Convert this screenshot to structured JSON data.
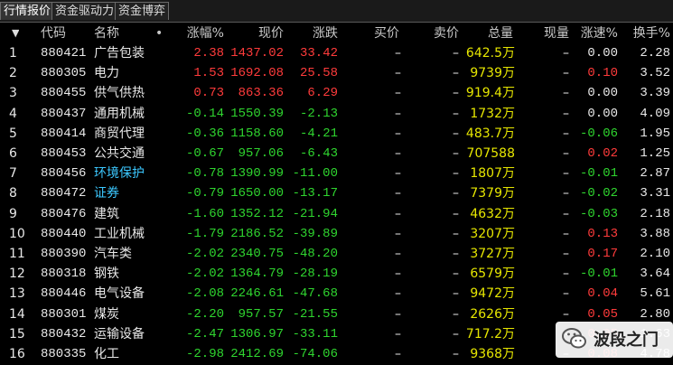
{
  "tabs": [
    {
      "label": "行情报价",
      "active": true
    },
    {
      "label": "资金驱动力",
      "active": false
    },
    {
      "label": "资金博弈",
      "active": false
    }
  ],
  "header": {
    "sort_icon": "▼",
    "code": "代码",
    "name": "名称",
    "name_marker": "•",
    "pct": "涨幅%",
    "price": "现价",
    "chg": "涨跌",
    "bid": "买价",
    "ask": "卖价",
    "vol": "总量",
    "cur": "现量",
    "speed": "涨速%",
    "turn": "换手%"
  },
  "rows": [
    {
      "idx": "1",
      "code": "880421",
      "name": "广告包装",
      "name_color": "white",
      "pct": "2.38",
      "price": "1437.02",
      "chg": "33.42",
      "bid": "–",
      "ask": "–",
      "vol": "642.5万",
      "cur": "–",
      "speed": "0.00",
      "turn": "2.28"
    },
    {
      "idx": "2",
      "code": "880305",
      "name": "电力",
      "name_color": "white",
      "pct": "1.53",
      "price": "1692.08",
      "chg": "25.58",
      "bid": "–",
      "ask": "–",
      "vol": "9739万",
      "cur": "–",
      "speed": "0.10",
      "turn": "3.52"
    },
    {
      "idx": "3",
      "code": "880455",
      "name": "供气供热",
      "name_color": "white",
      "pct": "0.73",
      "price": "863.36",
      "chg": "6.29",
      "bid": "–",
      "ask": "–",
      "vol": "919.4万",
      "cur": "–",
      "speed": "0.00",
      "turn": "3.39"
    },
    {
      "idx": "4",
      "code": "880437",
      "name": "通用机械",
      "name_color": "white",
      "pct": "-0.14",
      "price": "1550.39",
      "chg": "-2.13",
      "bid": "–",
      "ask": "–",
      "vol": "1732万",
      "cur": "–",
      "speed": "0.00",
      "turn": "4.09"
    },
    {
      "idx": "5",
      "code": "880414",
      "name": "商贸代理",
      "name_color": "white",
      "pct": "-0.36",
      "price": "1158.60",
      "chg": "-4.21",
      "bid": "–",
      "ask": "–",
      "vol": "483.7万",
      "cur": "–",
      "speed": "-0.06",
      "turn": "1.95"
    },
    {
      "idx": "6",
      "code": "880453",
      "name": "公共交通",
      "name_color": "white",
      "pct": "-0.67",
      "price": "957.06",
      "chg": "-6.43",
      "bid": "–",
      "ask": "–",
      "vol": "707588",
      "cur": "–",
      "speed": "0.02",
      "turn": "1.25"
    },
    {
      "idx": "7",
      "code": "880456",
      "name": "环境保护",
      "name_color": "cyan",
      "pct": "-0.78",
      "price": "1390.99",
      "chg": "-11.00",
      "bid": "–",
      "ask": "–",
      "vol": "1807万",
      "cur": "–",
      "speed": "-0.01",
      "turn": "2.87"
    },
    {
      "idx": "8",
      "code": "880472",
      "name": "证券",
      "name_color": "cyan",
      "pct": "-0.79",
      "price": "1650.00",
      "chg": "-13.17",
      "bid": "–",
      "ask": "–",
      "vol": "7379万",
      "cur": "–",
      "speed": "-0.02",
      "turn": "3.31"
    },
    {
      "idx": "9",
      "code": "880476",
      "name": "建筑",
      "name_color": "white",
      "pct": "-1.60",
      "price": "1352.12",
      "chg": "-21.94",
      "bid": "–",
      "ask": "–",
      "vol": "4632万",
      "cur": "–",
      "speed": "-0.03",
      "turn": "2.18"
    },
    {
      "idx": "10",
      "code": "880440",
      "name": "工业机械",
      "name_color": "white",
      "pct": "-1.79",
      "price": "2186.52",
      "chg": "-39.89",
      "bid": "–",
      "ask": "–",
      "vol": "3207万",
      "cur": "–",
      "speed": "0.13",
      "turn": "3.88"
    },
    {
      "idx": "11",
      "code": "880390",
      "name": "汽车类",
      "name_color": "white",
      "pct": "-2.02",
      "price": "2340.75",
      "chg": "-48.20",
      "bid": "–",
      "ask": "–",
      "vol": "3727万",
      "cur": "–",
      "speed": "0.17",
      "turn": "2.10"
    },
    {
      "idx": "12",
      "code": "880318",
      "name": "钢铁",
      "name_color": "white",
      "pct": "-2.02",
      "price": "1364.79",
      "chg": "-28.19",
      "bid": "–",
      "ask": "–",
      "vol": "6579万",
      "cur": "–",
      "speed": "-0.01",
      "turn": "3.64"
    },
    {
      "idx": "13",
      "code": "880446",
      "name": "电气设备",
      "name_color": "white",
      "pct": "-2.08",
      "price": "2246.61",
      "chg": "-47.68",
      "bid": "–",
      "ask": "–",
      "vol": "9472万",
      "cur": "–",
      "speed": "0.04",
      "turn": "5.61"
    },
    {
      "idx": "14",
      "code": "880301",
      "name": "煤炭",
      "name_color": "white",
      "pct": "-2.20",
      "price": "957.57",
      "chg": "-21.55",
      "bid": "–",
      "ask": "–",
      "vol": "2626万",
      "cur": "–",
      "speed": "0.05",
      "turn": "2.80"
    },
    {
      "idx": "15",
      "code": "880432",
      "name": "运输设备",
      "name_color": "white",
      "pct": "-2.47",
      "price": "1306.97",
      "chg": "-33.11",
      "bid": "–",
      "ask": "–",
      "vol": "717.2万",
      "cur": "–",
      "speed": "0.05",
      "turn": "1.63"
    },
    {
      "idx": "16",
      "code": "880335",
      "name": "化工",
      "name_color": "white",
      "pct": "-2.98",
      "price": "2412.69",
      "chg": "-74.06",
      "bid": "–",
      "ask": "–",
      "vol": "9368万",
      "cur": "–",
      "speed": "0.08",
      "turn": "4.78"
    }
  ],
  "watermark": {
    "text": "波段之门",
    "icon": "wechat-icon"
  },
  "colors": {
    "up": "#ff3b3b",
    "down": "#2fd52f",
    "flat": "#e8e8e8",
    "volume": "#e6e600",
    "highlight_name": "#3cc8ff",
    "background": "#000000"
  }
}
